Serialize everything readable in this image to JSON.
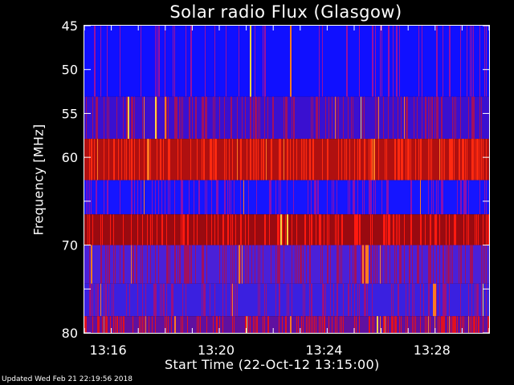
{
  "chart_data": {
    "type": "heatmap",
    "title": "Solar radio Flux (Glasgow)",
    "ylabel": "Frequency [MHz]",
    "xlabel": "Start Time (22-Oct-12 13:15:00)",
    "ylim": [
      45,
      80
    ],
    "yticks": [
      45,
      50,
      55,
      60,
      65,
      70,
      75,
      80
    ],
    "ytick_labels": [
      "45",
      "50",
      "55",
      "60",
      "70",
      "80"
    ],
    "ytick_label_values": [
      45,
      50,
      55,
      60,
      70,
      80
    ],
    "xlim_minutes": [
      13.25,
      13.5
    ],
    "xtick_labels": [
      "13:16",
      "13:20",
      "13:24",
      "13:28"
    ],
    "xtick_values_minutes_after_13": [
      16,
      20,
      24,
      28
    ],
    "xlim": [
      "13:15:00",
      "13:30:00"
    ],
    "bands": [
      {
        "f_start": 45,
        "f_end": 53.1,
        "base": "#1010ff",
        "stripe": "#9a10a0",
        "density": 0.22
      },
      {
        "f_start": 53.1,
        "f_end": 57.9,
        "base": "#3a10d0",
        "stripe": "#a01060",
        "density": 0.4
      },
      {
        "f_start": 57.9,
        "f_end": 62.6,
        "base": "#b01010",
        "stripe": "#ff2a10",
        "density": 0.45
      },
      {
        "f_start": 62.6,
        "f_end": 66.5,
        "base": "#1515ff",
        "stripe": "#8a10b0",
        "density": 0.3
      },
      {
        "f_start": 66.5,
        "f_end": 70,
        "base": "#9a0a10",
        "stripe": "#ff1a10",
        "density": 0.4
      },
      {
        "f_start": 70,
        "f_end": 74.4,
        "base": "#4a20d8",
        "stripe": "#a01060",
        "density": 0.45
      },
      {
        "f_start": 74.4,
        "f_end": 78.1,
        "base": "#3a20e0",
        "stripe": "#9a1080",
        "density": 0.4
      },
      {
        "f_start": 78.1,
        "f_end": 80,
        "base": "#6010a0",
        "stripe": "#e01020",
        "density": 0.55
      }
    ]
  },
  "footer": "Updated Wed Feb 21 22:19:56 2018"
}
